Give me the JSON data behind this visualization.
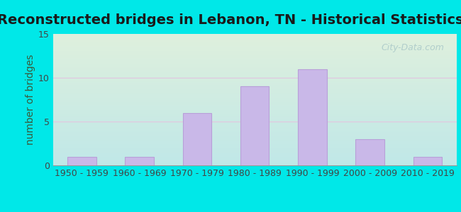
{
  "title": "Reconstructed bridges in Lebanon, TN - Historical Statistics",
  "categories": [
    "1950 - 1959",
    "1960 - 1969",
    "1970 - 1979",
    "1980 - 1989",
    "1990 - 1999",
    "2000 - 2009",
    "2010 - 2019"
  ],
  "values": [
    1,
    1,
    6,
    9,
    11,
    3,
    1
  ],
  "bar_color": "#c9b8e8",
  "bar_edge_color": "#b8a0d8",
  "ylabel": "number of bridges",
  "ylim": [
    0,
    15
  ],
  "yticks": [
    0,
    5,
    10,
    15
  ],
  "background_outer": "#00e8e8",
  "bg_top_left": "#dff0dd",
  "bg_top_right": "#cceedd",
  "bg_bottom_left": "#cceedd",
  "bg_bottom_right": "#b8e8e8",
  "grid_color": "#e0c8e0",
  "title_fontsize": 14,
  "axis_label_fontsize": 10,
  "tick_fontsize": 9,
  "watermark_text": "City-Data.com",
  "watermark_color": "#aac8c8",
  "title_color": "#1a1a1a",
  "axis_label_color": "#3a5a3a",
  "tick_color": "#444444"
}
